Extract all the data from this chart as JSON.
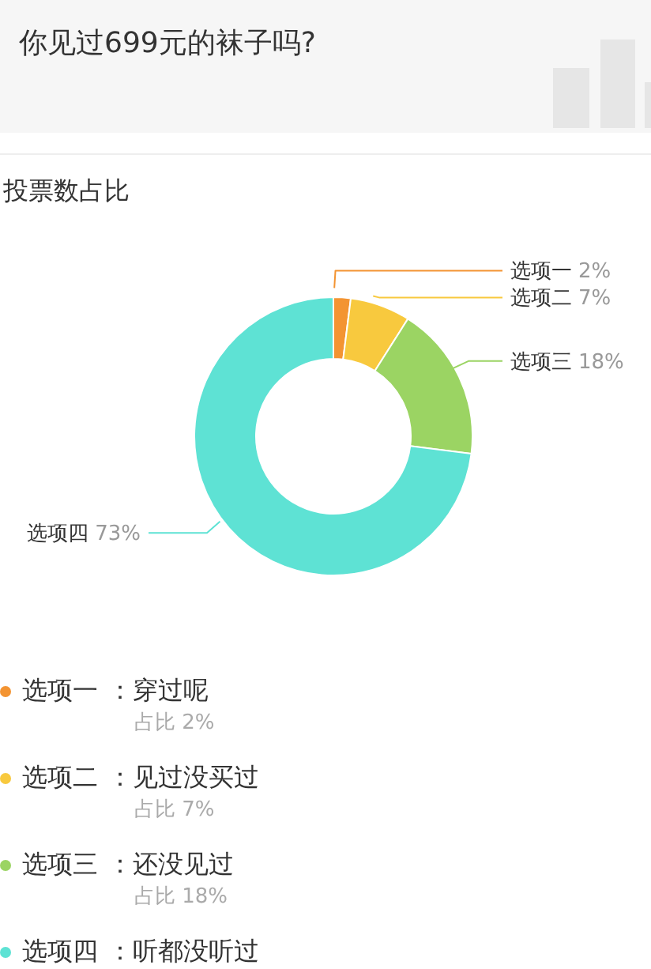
{
  "chart_data": {
    "type": "donut",
    "title": "你见过699元的袜子吗?",
    "subtitle": "投票数占比",
    "categories": [
      "选项一",
      "选项二",
      "选项三",
      "选项四"
    ],
    "values": [
      2,
      7,
      18,
      73
    ],
    "colors": [
      "#f39432",
      "#f8c93e",
      "#9bd463",
      "#5ee2d4"
    ],
    "value_labels": [
      "2%",
      "7%",
      "18%",
      "73%"
    ],
    "annotations": [
      "：穿过呢",
      "占比 2%",
      "：见过没买过",
      "占比 7%",
      "：还没见过",
      "占比 18%",
      "：听都没听过"
    ],
    "legend": "bottom"
  }
}
